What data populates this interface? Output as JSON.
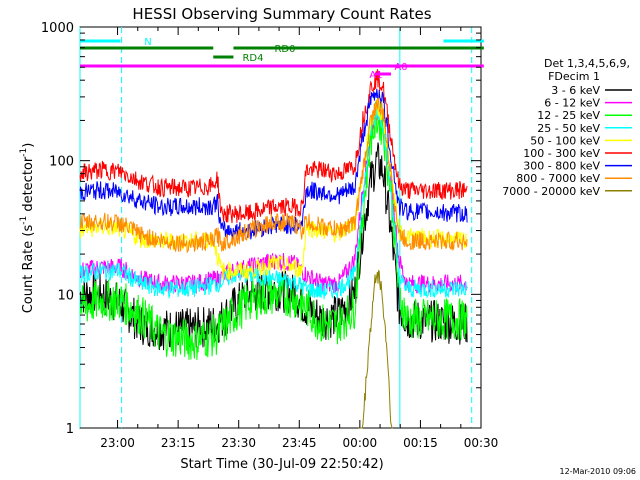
{
  "chart_data": {
    "type": "line",
    "title": "HESSI Observing Summary Count Rates",
    "xlabel": "Start Time (30-Jul-09 22:50:42)",
    "ylabel_main": "Count Rate (s",
    "ylabel_sup1": "-1",
    "ylabel_mid": " detector",
    "ylabel_sup2": "-1",
    "ylabel_end": ")",
    "y_scale": "log",
    "ylim": [
      1,
      1000
    ],
    "xlim": [
      "22:50:42",
      "00:30:00"
    ],
    "x_ticks": [
      "23:00",
      "23:15",
      "23:30",
      "23:45",
      "00:00",
      "00:15",
      "00:30"
    ],
    "x_tick_minutes": [
      9.3,
      24.3,
      39.3,
      54.3,
      69.3,
      84.3,
      99.3
    ],
    "y_ticks": [
      "1",
      "10",
      "100",
      "1000"
    ],
    "y_tick_values": [
      1,
      10,
      100,
      1000
    ],
    "legend_header": [
      "Det 1,3,4,5,6,9,",
      "FDecim 1"
    ],
    "legend_position": "right",
    "series": [
      {
        "name": "3 - 6 keV",
        "color": "#000000",
        "points": [
          [
            0,
            10
          ],
          [
            5,
            10
          ],
          [
            10,
            8.5
          ],
          [
            15,
            6
          ],
          [
            20,
            5.5
          ],
          [
            28,
            5.5
          ],
          [
            34,
            6
          ],
          [
            38,
            8
          ],
          [
            42,
            10
          ],
          [
            48,
            11
          ],
          [
            53,
            10
          ],
          [
            56,
            8
          ],
          [
            60,
            6.5
          ],
          [
            64,
            7
          ],
          [
            68,
            10
          ],
          [
            70,
            30
          ],
          [
            72,
            70
          ],
          [
            73.5,
            100
          ],
          [
            75,
            85
          ],
          [
            77,
            30
          ],
          [
            79,
            8
          ],
          [
            81,
            6.5
          ],
          [
            96,
            6
          ]
        ]
      },
      {
        "name": "6 - 12 keV",
        "color": "#ff00ff",
        "points": [
          [
            0,
            15
          ],
          [
            5,
            16
          ],
          [
            10,
            16
          ],
          [
            15,
            13
          ],
          [
            20,
            12
          ],
          [
            28,
            12
          ],
          [
            34,
            13
          ],
          [
            38,
            15
          ],
          [
            42,
            16
          ],
          [
            48,
            18
          ],
          [
            53,
            17
          ],
          [
            56,
            14
          ],
          [
            60,
            12
          ],
          [
            64,
            12
          ],
          [
            68,
            18
          ],
          [
            70,
            60
          ],
          [
            72,
            160
          ],
          [
            73.5,
            240
          ],
          [
            75,
            200
          ],
          [
            77,
            70
          ],
          [
            79,
            18
          ],
          [
            81,
            12
          ],
          [
            96,
            12
          ]
        ]
      },
      {
        "name": "12 - 25 keV",
        "color": "#00ff00",
        "points": [
          [
            0,
            8
          ],
          [
            5,
            9
          ],
          [
            10,
            9
          ],
          [
            15,
            7
          ],
          [
            20,
            5
          ],
          [
            28,
            4.5
          ],
          [
            34,
            5
          ],
          [
            38,
            7
          ],
          [
            42,
            9
          ],
          [
            48,
            10
          ],
          [
            53,
            9.5
          ],
          [
            56,
            8
          ],
          [
            60,
            6
          ],
          [
            64,
            6
          ],
          [
            68,
            8
          ],
          [
            70,
            40
          ],
          [
            72,
            150
          ],
          [
            73.5,
            210
          ],
          [
            75,
            180
          ],
          [
            77,
            60
          ],
          [
            79,
            10
          ],
          [
            81,
            6.5
          ],
          [
            96,
            6.5
          ]
        ]
      },
      {
        "name": "25 - 50 keV",
        "color": "#00ffff",
        "points": [
          [
            0,
            14
          ],
          [
            5,
            15
          ],
          [
            10,
            15
          ],
          [
            15,
            12
          ],
          [
            20,
            11
          ],
          [
            28,
            11
          ],
          [
            34,
            12
          ],
          [
            38,
            14
          ],
          [
            42,
            14
          ],
          [
            48,
            13
          ],
          [
            53,
            12.5
          ],
          [
            56,
            11
          ],
          [
            60,
            10.5
          ],
          [
            64,
            11
          ],
          [
            68,
            14
          ],
          [
            70,
            50
          ],
          [
            72,
            170
          ],
          [
            73.5,
            240
          ],
          [
            75,
            200
          ],
          [
            77,
            60
          ],
          [
            79,
            13
          ],
          [
            81,
            11
          ],
          [
            96,
            11
          ]
        ]
      },
      {
        "name": "50 - 100 keV",
        "color": "#ffff00",
        "points": [
          [
            0,
            30
          ],
          [
            5,
            32
          ],
          [
            10,
            31
          ],
          [
            15,
            26
          ],
          [
            20,
            25
          ],
          [
            28,
            25
          ],
          [
            33,
            26
          ],
          [
            35,
            15
          ],
          [
            42,
            15
          ],
          [
            48,
            17
          ],
          [
            53,
            16
          ],
          [
            55,
            15
          ],
          [
            56,
            32
          ],
          [
            60,
            30
          ],
          [
            64,
            28
          ],
          [
            68,
            35
          ],
          [
            70,
            80
          ],
          [
            72,
            190
          ],
          [
            73.5,
            260
          ],
          [
            75,
            220
          ],
          [
            77,
            80
          ],
          [
            79,
            30
          ],
          [
            81,
            27
          ],
          [
            96,
            25
          ]
        ]
      },
      {
        "name": "100 - 300 keV",
        "color": "#ff0000",
        "points": [
          [
            0,
            80
          ],
          [
            5,
            85
          ],
          [
            10,
            83
          ],
          [
            15,
            70
          ],
          [
            20,
            63
          ],
          [
            28,
            62
          ],
          [
            33,
            65
          ],
          [
            34,
            75
          ],
          [
            35,
            40
          ],
          [
            42,
            40
          ],
          [
            48,
            45
          ],
          [
            53,
            45
          ],
          [
            55,
            45
          ],
          [
            56,
            85
          ],
          [
            60,
            85
          ],
          [
            64,
            80
          ],
          [
            68,
            90
          ],
          [
            70,
            200
          ],
          [
            72,
            350
          ],
          [
            73.5,
            420
          ],
          [
            75,
            360
          ],
          [
            77,
            150
          ],
          [
            79,
            65
          ],
          [
            81,
            60
          ],
          [
            96,
            60
          ]
        ]
      },
      {
        "name": "300 - 800 keV",
        "color": "#0000ff",
        "points": [
          [
            0,
            58
          ],
          [
            5,
            60
          ],
          [
            10,
            58
          ],
          [
            15,
            50
          ],
          [
            20,
            45
          ],
          [
            28,
            45
          ],
          [
            33,
            46
          ],
          [
            34,
            50
          ],
          [
            35,
            30
          ],
          [
            42,
            30
          ],
          [
            48,
            33
          ],
          [
            53,
            33
          ],
          [
            55,
            33
          ],
          [
            56,
            60
          ],
          [
            60,
            58
          ],
          [
            64,
            55
          ],
          [
            68,
            62
          ],
          [
            70,
            150
          ],
          [
            72,
            280
          ],
          [
            73.5,
            330
          ],
          [
            75,
            290
          ],
          [
            77,
            110
          ],
          [
            79,
            45
          ],
          [
            81,
            42
          ],
          [
            96,
            40
          ]
        ]
      },
      {
        "name": "800 - 7000 keV",
        "color": "#ff8c00",
        "points": [
          [
            0,
            34
          ],
          [
            5,
            35
          ],
          [
            10,
            34
          ],
          [
            15,
            28
          ],
          [
            20,
            25
          ],
          [
            28,
            24
          ],
          [
            33,
            25
          ],
          [
            34,
            28
          ],
          [
            35,
            24
          ],
          [
            42,
            30
          ],
          [
            48,
            35
          ],
          [
            53,
            34
          ],
          [
            55,
            30
          ],
          [
            56,
            35
          ],
          [
            60,
            32
          ],
          [
            64,
            30
          ],
          [
            68,
            34
          ],
          [
            70,
            80
          ],
          [
            72,
            200
          ],
          [
            73.5,
            270
          ],
          [
            75,
            230
          ],
          [
            77,
            80
          ],
          [
            79,
            28
          ],
          [
            81,
            25
          ],
          [
            96,
            25
          ]
        ]
      },
      {
        "name": "7000 - 20000 keV",
        "color": "#8b8000",
        "points": [
          [
            69,
            0.5
          ],
          [
            70,
            1
          ],
          [
            71.5,
            4
          ],
          [
            73,
            12
          ],
          [
            73.5,
            15
          ],
          [
            74.5,
            12
          ],
          [
            76,
            4
          ],
          [
            77,
            1.2
          ],
          [
            77.5,
            0.5
          ]
        ]
      }
    ],
    "attenuator_bars": [
      {
        "label": "RD0",
        "color": "#008000",
        "level": "upper",
        "segments": [
          [
            0,
            33
          ],
          [
            38,
            100
          ]
        ]
      },
      {
        "label": "RD4",
        "color": "#008000",
        "level": "upper-inner",
        "segments": [
          [
            33,
            38
          ]
        ]
      },
      {
        "label": "N",
        "color": "#00ffff",
        "level": "top",
        "segments": [
          [
            0,
            10
          ],
          [
            90,
            100
          ]
        ]
      },
      {
        "label": "A0",
        "color": "#ff00ff",
        "level": "middle",
        "segments": [
          [
            0,
            100
          ]
        ]
      },
      {
        "label": "A1",
        "color": "#ff00ff",
        "level": "middle-inner",
        "segments": [
          [
            73,
            77
          ]
        ]
      }
    ],
    "vertical_markers": [
      {
        "minute": 10.3,
        "color": "#00ffff",
        "style": "dashed"
      },
      {
        "minute": 79.2,
        "color": "#00ffff",
        "style": "solid"
      },
      {
        "minute": 97.0,
        "color": "#00ffff",
        "style": "dashed"
      },
      {
        "minute": 0.0,
        "color": "#00ffff",
        "style": "solid"
      }
    ],
    "timestamp": "12-Mar-2010 09:06"
  }
}
